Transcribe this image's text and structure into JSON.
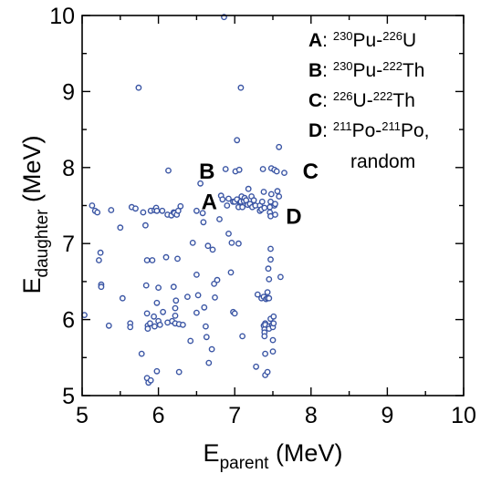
{
  "chart_data": {
    "type": "scatter",
    "xlabel": {
      "main": "E",
      "sub": "parent",
      "unit": "(MeV)"
    },
    "ylabel": {
      "main": "E",
      "sub": "daughter",
      "unit": "(MeV)"
    },
    "xlim": [
      5,
      10
    ],
    "ylim": [
      5,
      10
    ],
    "xticks": [
      "5",
      "6",
      "7",
      "8",
      "9",
      "10"
    ],
    "yticks": [
      "5",
      "6",
      "7",
      "8",
      "9",
      "10"
    ],
    "grid": false,
    "marker_color": "#3a55a4",
    "legend_position": "top-right",
    "legend": [
      {
        "key": "A",
        "parts": [
          ": ",
          "^230",
          "Pu-",
          "^226",
          "U"
        ]
      },
      {
        "key": "B",
        "parts": [
          ": ",
          "^230",
          "Pu-",
          "^222",
          "Th"
        ]
      },
      {
        "key": "C",
        "parts": [
          ": ",
          "^226",
          "U-",
          "^222",
          "Th"
        ]
      },
      {
        "key": "D",
        "parts": [
          ": ",
          "^211",
          "Po-",
          "^211",
          "Po,"
        ]
      },
      {
        "key": "",
        "parts": [
          "random"
        ]
      }
    ],
    "annotations": [
      {
        "text": "A",
        "x": 6.77,
        "y": 7.56
      },
      {
        "text": "B",
        "x": 6.74,
        "y": 7.96
      },
      {
        "text": "C",
        "x": 7.89,
        "y": 7.96
      },
      {
        "text": "D",
        "x": 7.67,
        "y": 7.37
      }
    ],
    "points": [
      [
        5.03,
        6.06
      ],
      [
        5.13,
        7.5
      ],
      [
        5.17,
        7.43
      ],
      [
        5.2,
        7.41
      ],
      [
        5.24,
        6.88
      ],
      [
        5.22,
        6.78
      ],
      [
        5.25,
        6.46
      ],
      [
        5.25,
        6.43
      ],
      [
        5.35,
        5.92
      ],
      [
        5.38,
        7.44
      ],
      [
        5.5,
        7.21
      ],
      [
        5.53,
        6.28
      ],
      [
        5.63,
        5.95
      ],
      [
        5.63,
        5.9
      ],
      [
        5.65,
        7.48
      ],
      [
        5.7,
        7.46
      ],
      [
        5.74,
        9.05
      ],
      [
        5.78,
        5.55
      ],
      [
        5.8,
        7.41
      ],
      [
        5.83,
        7.24
      ],
      [
        5.84,
        6.45
      ],
      [
        5.85,
        6.78
      ],
      [
        5.85,
        6.08
      ],
      [
        5.86,
        5.92
      ],
      [
        5.86,
        5.88
      ],
      [
        5.85,
        5.23
      ],
      [
        5.87,
        5.17
      ],
      [
        5.89,
        5.95
      ],
      [
        5.9,
        5.2
      ],
      [
        5.9,
        7.43
      ],
      [
        5.92,
        6.78
      ],
      [
        5.94,
        6.04
      ],
      [
        5.95,
        5.91
      ],
      [
        5.95,
        7.44
      ],
      [
        5.97,
        7.47
      ],
      [
        5.98,
        7.43
      ],
      [
        5.98,
        6.22
      ],
      [
        6.0,
        6.42
      ],
      [
        6.0,
        5.98
      ],
      [
        5.98,
        5.32
      ],
      [
        6.02,
        5.93
      ],
      [
        6.06,
        6.1
      ],
      [
        6.05,
        7.43
      ],
      [
        6.12,
        7.38
      ],
      [
        6.1,
        6.82
      ],
      [
        6.12,
        5.96
      ],
      [
        6.13,
        7.96
      ],
      [
        6.17,
        7.37
      ],
      [
        6.18,
        5.98
      ],
      [
        6.2,
        6.43
      ],
      [
        6.2,
        7.41
      ],
      [
        6.21,
        7.4
      ],
      [
        6.22,
        6.15
      ],
      [
        6.22,
        6.05
      ],
      [
        6.23,
        6.25
      ],
      [
        6.22,
        5.95
      ],
      [
        6.24,
        7.38
      ],
      [
        6.25,
        6.8
      ],
      [
        6.26,
        7.43
      ],
      [
        6.27,
        5.94
      ],
      [
        6.29,
        7.49
      ],
      [
        6.27,
        5.31
      ],
      [
        6.32,
        5.93
      ],
      [
        6.38,
        6.3
      ],
      [
        6.42,
        5.72
      ],
      [
        6.45,
        7.01
      ],
      [
        6.5,
        6.09
      ],
      [
        6.5,
        6.59
      ],
      [
        6.52,
        6.32
      ],
      [
        6.5,
        7.43
      ],
      [
        6.55,
        7.79
      ],
      [
        6.58,
        7.4
      ],
      [
        6.59,
        7.28
      ],
      [
        6.6,
        6.16
      ],
      [
        6.62,
        5.91
      ],
      [
        6.63,
        5.77
      ],
      [
        6.66,
        5.43
      ],
      [
        6.65,
        6.97
      ],
      [
        6.7,
        5.61
      ],
      [
        6.71,
        6.92
      ],
      [
        6.73,
        6.47
      ],
      [
        6.74,
        6.29
      ],
      [
        6.77,
        6.52
      ],
      [
        6.8,
        7.32
      ],
      [
        6.82,
        7.63
      ],
      [
        6.84,
        7.58
      ],
      [
        6.86,
        9.98
      ],
      [
        6.88,
        7.98
      ],
      [
        6.9,
        7.5
      ],
      [
        6.92,
        7.13
      ],
      [
        6.92,
        7.59
      ],
      [
        6.95,
        6.62
      ],
      [
        6.96,
        7.01
      ],
      [
        6.98,
        6.1
      ],
      [
        6.98,
        7.55
      ],
      [
        7.0,
        6.08
      ],
      [
        7.0,
        7.55
      ],
      [
        7.01,
        7.95
      ],
      [
        7.03,
        8.36
      ],
      [
        7.05,
        7.0
      ],
      [
        7.03,
        7.58
      ],
      [
        7.05,
        7.48
      ],
      [
        7.06,
        7.97
      ],
      [
        7.07,
        7.54
      ],
      [
        7.08,
        9.05
      ],
      [
        7.08,
        7.55
      ],
      [
        7.09,
        7.62
      ],
      [
        7.1,
        7.48
      ],
      [
        7.1,
        5.78
      ],
      [
        7.12,
        7.56
      ],
      [
        7.13,
        7.6
      ],
      [
        7.15,
        7.57
      ],
      [
        7.17,
        7.51
      ],
      [
        7.18,
        7.72
      ],
      [
        7.2,
        7.52
      ],
      [
        7.22,
        7.62
      ],
      [
        7.23,
        7.48
      ],
      [
        7.25,
        7.57
      ],
      [
        7.27,
        7.5
      ],
      [
        7.28,
        5.38
      ],
      [
        7.3,
        6.33
      ],
      [
        7.33,
        7.5
      ],
      [
        7.33,
        7.43
      ],
      [
        7.35,
        7.45
      ],
      [
        7.36,
        7.55
      ],
      [
        7.35,
        6.28
      ],
      [
        7.37,
        7.98
      ],
      [
        7.38,
        7.68
      ],
      [
        7.39,
        7.47
      ],
      [
        7.38,
        6.3
      ],
      [
        7.38,
        5.92
      ],
      [
        7.4,
        5.95
      ],
      [
        7.4,
        5.93
      ],
      [
        7.39,
        5.87
      ],
      [
        7.39,
        5.83
      ],
      [
        7.39,
        5.78
      ],
      [
        7.4,
        5.55
      ],
      [
        7.4,
        5.27
      ],
      [
        7.41,
        6.27
      ],
      [
        7.43,
        5.31
      ],
      [
        7.43,
        6.36
      ],
      [
        7.43,
        6.28
      ],
      [
        7.44,
        6.67
      ],
      [
        7.45,
        6.53
      ],
      [
        7.45,
        6.28
      ],
      [
        7.45,
        5.91
      ],
      [
        7.45,
        5.88
      ],
      [
        7.46,
        7.48
      ],
      [
        7.46,
        7.41
      ],
      [
        7.47,
        7.55
      ],
      [
        7.47,
        7.36
      ],
      [
        7.47,
        6.93
      ],
      [
        7.47,
        6.79
      ],
      [
        7.47,
        6.01
      ],
      [
        7.49,
        5.93
      ],
      [
        7.48,
        7.99
      ],
      [
        7.48,
        7.65
      ],
      [
        7.5,
        5.9
      ],
      [
        7.5,
        5.73
      ],
      [
        7.5,
        5.58
      ],
      [
        7.51,
        6.04
      ],
      [
        7.51,
        5.95
      ],
      [
        7.52,
        7.97
      ],
      [
        7.52,
        7.5
      ],
      [
        7.53,
        7.52
      ],
      [
        7.53,
        7.38
      ],
      [
        7.55,
        7.95
      ],
      [
        7.56,
        7.69
      ],
      [
        7.58,
        7.62
      ],
      [
        7.58,
        8.27
      ],
      [
        7.6,
        6.56
      ],
      [
        7.65,
        7.93
      ]
    ]
  }
}
